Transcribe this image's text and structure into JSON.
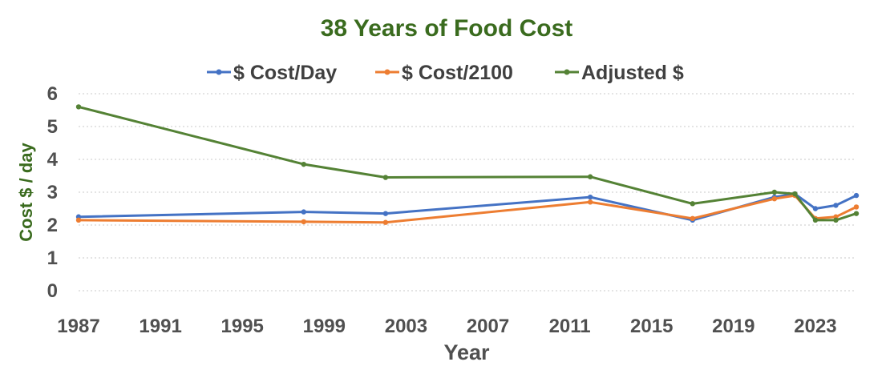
{
  "chart_data": {
    "type": "line",
    "title": "38 Years of Food Cost",
    "xlabel": "Year",
    "ylabel": "Cost $ / day",
    "xlim": [
      1987,
      2025
    ],
    "ylim": [
      0,
      6
    ],
    "x_ticks": [
      "1987",
      "1991",
      "1995",
      "1999",
      "2003",
      "2007",
      "2011",
      "2015",
      "2019",
      "2023"
    ],
    "y_ticks": [
      "0",
      "1",
      "2",
      "3",
      "4",
      "5",
      "6"
    ],
    "grid": "horizontal dotted",
    "legend_position": "top",
    "colors": {
      "title": "#3a6b1e",
      "ylabel": "#3a6b1e",
      "axis": "#505050",
      "grid": "#c8c8c8"
    },
    "series": [
      {
        "name": "$ Cost/Day",
        "color": "#4472c4",
        "x": [
          1987,
          1998,
          2002,
          2012,
          2017,
          2021,
          2022,
          2023,
          2024,
          2025
        ],
        "values": [
          2.25,
          2.4,
          2.35,
          2.85,
          2.15,
          2.85,
          2.95,
          2.5,
          2.6,
          2.9
        ]
      },
      {
        "name": "$ Cost/2100",
        "color": "#ed7d31",
        "x": [
          1987,
          1998,
          2002,
          2012,
          2017,
          2021,
          2022,
          2023,
          2024,
          2025
        ],
        "values": [
          2.15,
          2.1,
          2.08,
          2.7,
          2.2,
          2.8,
          2.9,
          2.2,
          2.25,
          2.55
        ]
      },
      {
        "name": "Adjusted $",
        "color": "#548235",
        "x": [
          1987,
          1998,
          2002,
          2012,
          2017,
          2021,
          2022,
          2023,
          2024,
          2025
        ],
        "values": [
          5.6,
          3.85,
          3.45,
          3.47,
          2.65,
          3.0,
          2.95,
          2.15,
          2.15,
          2.35
        ]
      }
    ]
  }
}
